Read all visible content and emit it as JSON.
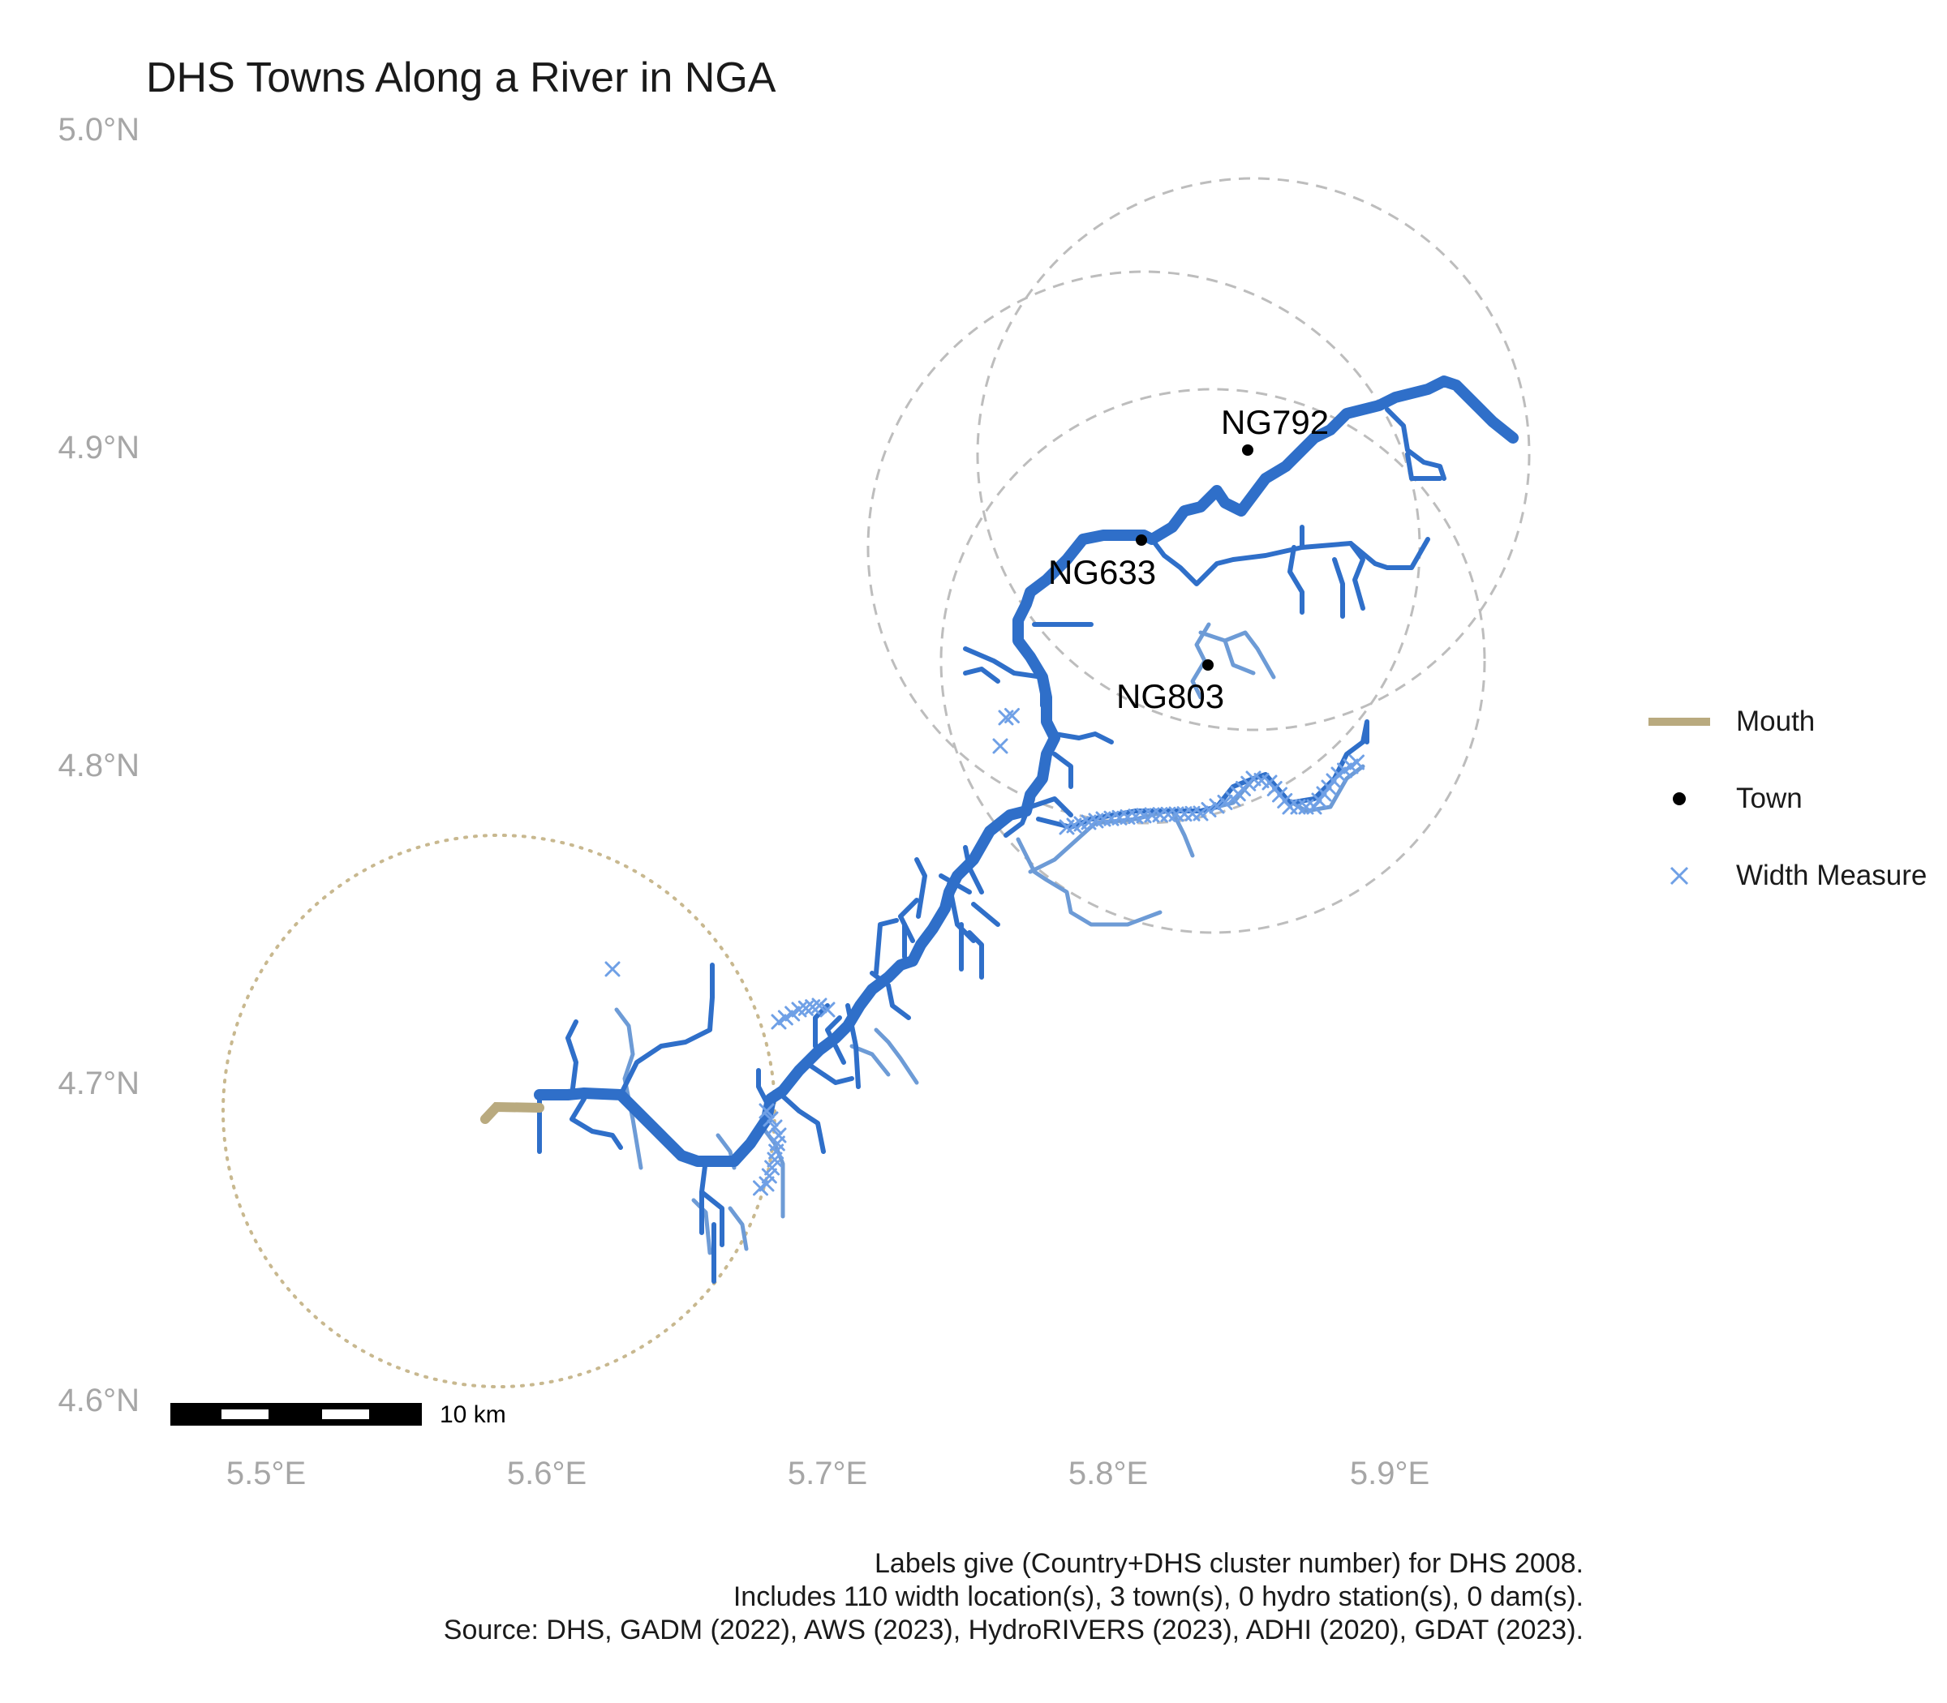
{
  "title": "DHS Towns Along a River in NGA",
  "axes": {
    "x_ticks": [
      "5.5°E",
      "5.6°E",
      "5.7°E",
      "5.8°E",
      "5.9°E"
    ],
    "y_ticks": [
      "5.0°N",
      "4.9°N",
      "4.8°N",
      "4.7°N",
      "4.6°N"
    ]
  },
  "chart_data": {
    "type": "map",
    "xlim": [
      5.46,
      5.95
    ],
    "ylim": [
      4.59,
      5.0
    ],
    "towns": [
      {
        "label": "NG792",
        "lon": 5.849,
        "lat": 4.898
      },
      {
        "label": "NG633",
        "lon": 5.811,
        "lat": 4.869
      },
      {
        "label": "NG803",
        "lon": 5.835,
        "lat": 4.829
      }
    ],
    "mouth": {
      "lon": 5.602,
      "lat": 4.695
    }
  },
  "legend": [
    {
      "label": "Mouth",
      "color": "#b9aa7f"
    },
    {
      "label": "Town",
      "color": "#000000"
    },
    {
      "label": "Width Measure",
      "color": "#6fa0e6"
    }
  ],
  "scale_bar": {
    "label": "10 km"
  },
  "caption": [
    "Labels give (Country+DHS cluster number) for DHS 2008.",
    "Includes 110 width location(s), 3 town(s), 0 hydro station(s), 0 dam(s).",
    "Source: DHS, GADM (2022), AWS (2023), HydroRIVERS (2023), ADHI (2020), GDAT (2023)."
  ],
  "colors": {
    "river_main": "#2f6fc9",
    "river_minor": "#6d9bd6",
    "buffer": "#bdbdbd",
    "mouth_buffer": "#c8b88f"
  }
}
